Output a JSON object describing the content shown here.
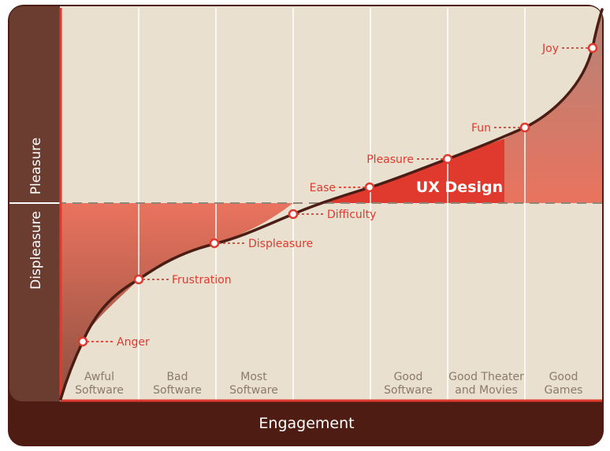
{
  "side_labels": {
    "top": "Pleasure",
    "bottom": "Displeasure"
  },
  "x_axis_label": "Engagement",
  "columns": [
    {
      "line1": "Awful",
      "line2": "Software"
    },
    {
      "line1": "Bad",
      "line2": "Software"
    },
    {
      "line1": "Most",
      "line2": "Software"
    },
    {
      "line1": "",
      "line2": ""
    },
    {
      "line1": "Good",
      "line2": "Software"
    },
    {
      "line1": "Good Theater",
      "line2": "and Movies"
    },
    {
      "line1": "Good",
      "line2": "Games"
    }
  ],
  "curve_points": [
    {
      "label": "Anger"
    },
    {
      "label": "Frustration"
    },
    {
      "label": "Displeasure"
    },
    {
      "label": "Difficulty"
    },
    {
      "label": "Ease"
    },
    {
      "label": "Pleasure"
    },
    {
      "label": "Fun"
    },
    {
      "label": "Joy"
    }
  ],
  "highlight_label": "UX Design",
  "colors": {
    "frame": "#4e1c13",
    "side_bar": "#6b3d31",
    "plot_bg": "#e9e0cf",
    "accent_red": "#e03a2e",
    "curve": "#4a1e14"
  }
}
